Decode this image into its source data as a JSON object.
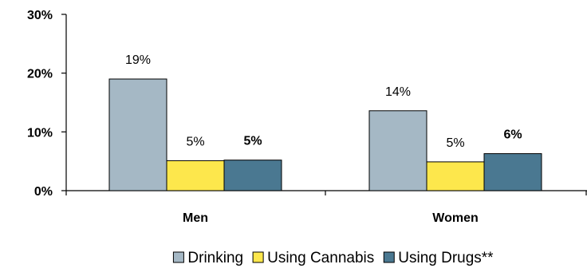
{
  "chart_data": {
    "type": "bar",
    "title": "",
    "xlabel": "",
    "ylabel": "",
    "categories": [
      "Men",
      "Women"
    ],
    "ylim": [
      0,
      30
    ],
    "y_ticks": [
      {
        "value": 0,
        "label": "0%"
      },
      {
        "value": 10,
        "label": "10%"
      },
      {
        "value": 20,
        "label": "20%"
      },
      {
        "value": 30,
        "label": "30%"
      }
    ],
    "grid": false,
    "legend_position": "bottom",
    "series": [
      {
        "name": "Drinking",
        "color": "#a5b8c5",
        "values": [
          19,
          13.6
        ],
        "labels": [
          "19%",
          "14%"
        ],
        "label_bold": false
      },
      {
        "name": "Using Cannabis",
        "color": "#fde74c",
        "values": [
          5.1,
          4.9
        ],
        "labels": [
          "5%",
          "5%"
        ],
        "label_bold": false
      },
      {
        "name": "Using Drugs**",
        "color": "#4a7891",
        "values": [
          5.2,
          6.3
        ],
        "labels": [
          "5%",
          "6%"
        ],
        "label_bold": true
      }
    ]
  }
}
